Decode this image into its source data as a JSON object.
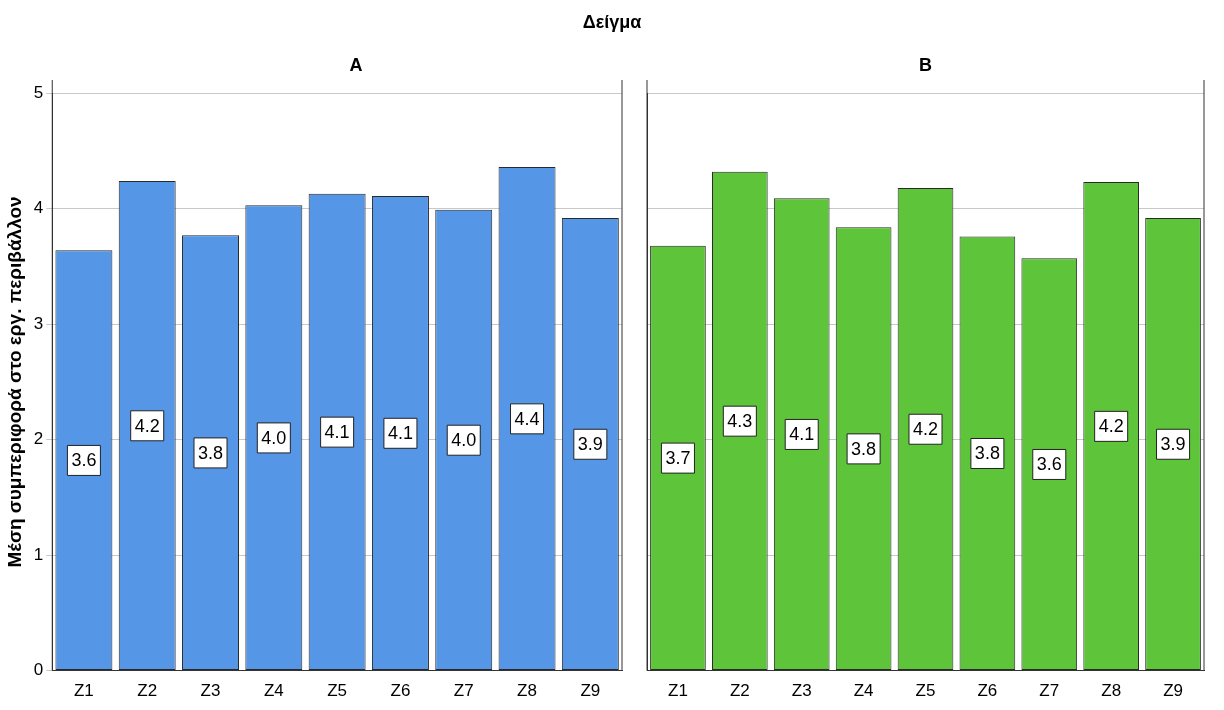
{
  "chart_data": [
    {
      "type": "bar",
      "title": "Δείγμα",
      "subtitle": "A",
      "ylabel": "Μέση συμπεριφορά στο εργ. περιβάλλον",
      "categories": [
        "Z1",
        "Z2",
        "Z3",
        "Z4",
        "Z5",
        "Z6",
        "Z7",
        "Z8",
        "Z9"
      ],
      "values": [
        3.64,
        4.24,
        3.77,
        4.03,
        4.13,
        4.11,
        3.99,
        4.36,
        3.92
      ],
      "value_labels": [
        "3.6",
        "4.2",
        "3.8",
        "4.0",
        "4.1",
        "4.1",
        "4.0",
        "4.4",
        "3.9"
      ],
      "color": "#5596e6",
      "ylim": [
        0,
        5
      ],
      "yticks": [
        0,
        1,
        2,
        3,
        4,
        5
      ],
      "grid": "y",
      "legend": false
    },
    {
      "type": "bar",
      "subtitle": "B",
      "categories": [
        "Z1",
        "Z2",
        "Z3",
        "Z4",
        "Z5",
        "Z6",
        "Z7",
        "Z8",
        "Z9"
      ],
      "values": [
        3.68,
        4.32,
        4.09,
        3.84,
        4.18,
        3.76,
        3.57,
        4.23,
        3.92
      ],
      "value_labels": [
        "3.7",
        "4.3",
        "4.1",
        "3.8",
        "4.2",
        "3.8",
        "3.6",
        "4.2",
        "3.9"
      ],
      "color": "#5ec43a",
      "ylim": [
        0,
        5
      ],
      "yticks": [
        0,
        1,
        2,
        3,
        4,
        5
      ],
      "grid": "y",
      "legend": false,
      "tick_labels": "x"
    }
  ]
}
